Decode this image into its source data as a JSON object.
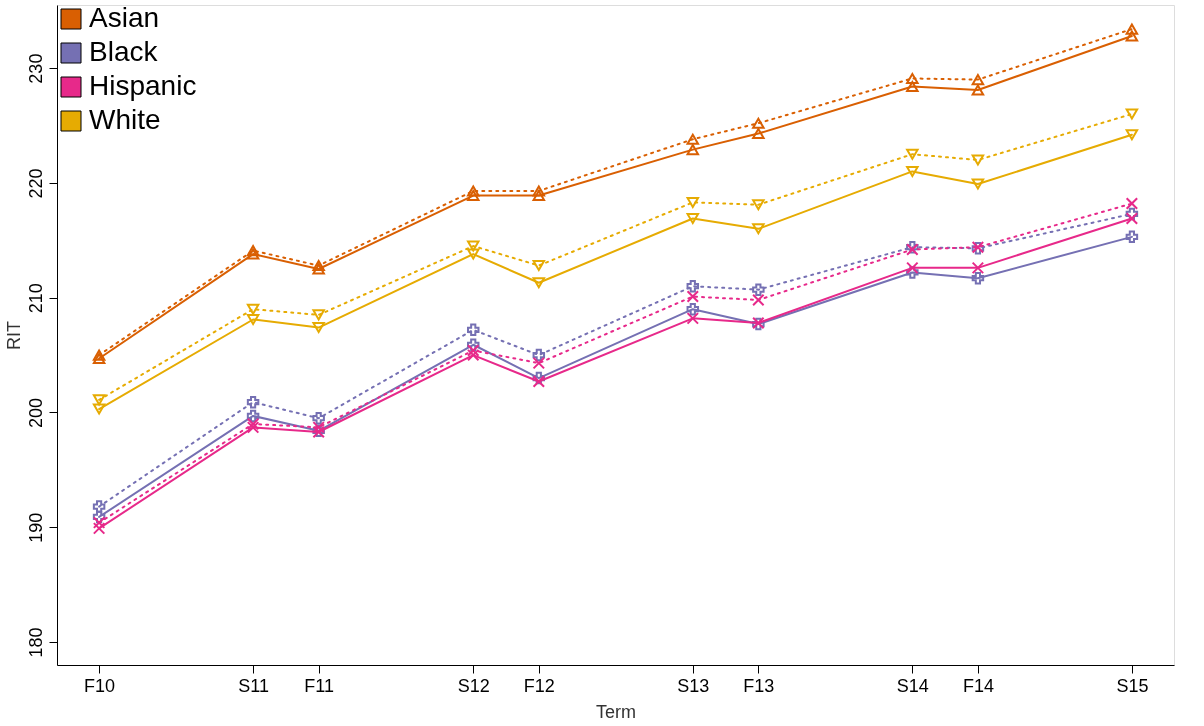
{
  "chart_data": {
    "type": "line",
    "xlabel": "Term",
    "ylabel": "RIT",
    "x": [
      "2010-09-01",
      "2011-05-15",
      "2011-09-01",
      "2012-05-15",
      "2012-09-01",
      "2013-05-15",
      "2013-09-01",
      "2014-05-15",
      "2014-09-01",
      "2015-05-15"
    ],
    "xlim": [
      "2010-06-23",
      "2015-07-24"
    ],
    "xticks": [
      {
        "value": "2010-09-01",
        "label": "F10"
      },
      {
        "value": "2011-05-15",
        "label": "S11"
      },
      {
        "value": "2011-09-01",
        "label": "F11"
      },
      {
        "value": "2012-05-15",
        "label": "S12"
      },
      {
        "value": "2012-09-01",
        "label": "F12"
      },
      {
        "value": "2013-05-15",
        "label": "S13"
      },
      {
        "value": "2013-09-01",
        "label": "F13"
      },
      {
        "value": "2014-05-15",
        "label": "S14"
      },
      {
        "value": "2014-09-01",
        "label": "F14"
      },
      {
        "value": "2015-05-15",
        "label": "S15"
      }
    ],
    "ylim": [
      178,
      235.5
    ],
    "yticks": [
      180,
      190,
      200,
      210,
      220,
      230
    ],
    "grid": false,
    "legend": "top left",
    "series": [
      {
        "name": "Asian",
        "color": "#d95f02",
        "line_style": "solid",
        "marker": "triangle",
        "values": [
          204.7,
          213.8,
          212.5,
          218.9,
          218.9,
          222.9,
          224.3,
          228.4,
          228.1,
          232.8
        ]
      },
      {
        "color": "#d95f02",
        "line_style": "dotted",
        "marker": "triangle",
        "values": [
          205.0,
          214.1,
          212.8,
          219.3,
          219.3,
          223.8,
          225.2,
          229.1,
          229.0,
          233.4
        ]
      },
      {
        "name": "Black",
        "color": "#7570b3",
        "line_style": "solid",
        "marker": "cross",
        "values": [
          190.9,
          199.7,
          198.4,
          205.9,
          203.0,
          209.0,
          207.7,
          212.2,
          211.7,
          215.3
        ]
      },
      {
        "color": "#7570b3",
        "line_style": "dotted",
        "marker": "cross",
        "values": [
          191.8,
          200.9,
          199.5,
          207.2,
          205.0,
          211.0,
          210.7,
          214.4,
          214.3,
          217.3
        ]
      },
      {
        "name": "Hispanic",
        "color": "#e7298a",
        "line_style": "solid",
        "marker": "x",
        "values": [
          189.9,
          198.7,
          198.3,
          205.0,
          202.7,
          208.2,
          207.8,
          212.6,
          212.6,
          216.9
        ]
      },
      {
        "color": "#e7298a",
        "line_style": "dotted",
        "marker": "x",
        "values": [
          190.4,
          199.0,
          198.7,
          205.4,
          204.3,
          210.1,
          209.8,
          214.2,
          214.4,
          218.2
        ]
      },
      {
        "name": "White",
        "color": "#e6ab02",
        "line_style": "solid",
        "marker": "triangle-down",
        "values": [
          200.3,
          208.1,
          207.4,
          213.8,
          211.3,
          216.9,
          216.0,
          221.0,
          219.9,
          224.2
        ]
      },
      {
        "color": "#e6ab02",
        "line_style": "dotted",
        "marker": "triangle-down",
        "values": [
          201.1,
          209.0,
          208.5,
          214.5,
          212.8,
          218.3,
          218.1,
          222.5,
          222.0,
          226.0
        ]
      }
    ]
  }
}
